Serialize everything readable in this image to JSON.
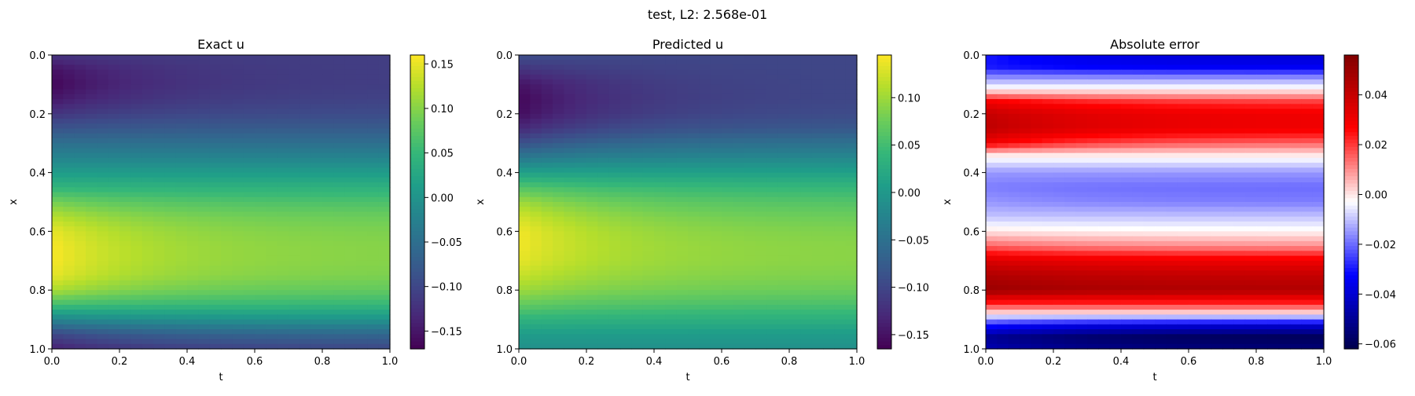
{
  "figure": {
    "suptitle": "test, L2: 2.568e-01"
  },
  "chart_data": [
    {
      "type": "heatmap",
      "title": "Exact u",
      "xlabel": "t",
      "ylabel": "x",
      "xlim": [
        0.0,
        1.0
      ],
      "ylim": [
        1.0,
        0.0
      ],
      "xticks": [
        "0.0",
        "0.2",
        "0.4",
        "0.6",
        "0.8",
        "1.0"
      ],
      "yticks": [
        "0.0",
        "0.2",
        "0.4",
        "0.6",
        "0.8",
        "1.0"
      ],
      "colormap": "viridis",
      "clim": [
        -0.17,
        0.16
      ],
      "colorbar_ticks": [
        "0.15",
        "0.10",
        "0.05",
        "0.00",
        "−0.05",
        "−0.10",
        "−0.15"
      ],
      "colorbar_tick_values": [
        0.15,
        0.1,
        0.05,
        0.0,
        -0.05,
        -0.1,
        -0.15
      ],
      "profile": {
        "x": [
          0.0,
          0.05,
          0.1,
          0.15,
          0.2,
          0.25,
          0.3,
          0.35,
          0.4,
          0.45,
          0.5,
          0.55,
          0.6,
          0.65,
          0.7,
          0.75,
          0.8,
          0.85,
          0.9,
          0.95,
          1.0
        ],
        "u_t0": [
          -0.12,
          -0.155,
          -0.165,
          -0.15,
          -0.12,
          -0.085,
          -0.05,
          -0.02,
          0.01,
          0.045,
          0.09,
          0.125,
          0.15,
          0.158,
          0.158,
          0.15,
          0.12,
          0.06,
          -0.02,
          -0.1,
          -0.14
        ],
        "u_t1": [
          -0.11,
          -0.11,
          -0.11,
          -0.105,
          -0.095,
          -0.075,
          -0.05,
          -0.02,
          0.01,
          0.04,
          0.065,
          0.085,
          0.095,
          0.1,
          0.1,
          0.095,
          0.08,
          0.05,
          0.0,
          -0.06,
          -0.1
        ]
      }
    },
    {
      "type": "heatmap",
      "title": "Predicted u",
      "xlabel": "t",
      "ylabel": "x",
      "xlim": [
        0.0,
        1.0
      ],
      "ylim": [
        1.0,
        0.0
      ],
      "xticks": [
        "0.0",
        "0.2",
        "0.4",
        "0.6",
        "0.8",
        "1.0"
      ],
      "yticks": [
        "0.0",
        "0.2",
        "0.4",
        "0.6",
        "0.8",
        "1.0"
      ],
      "colormap": "viridis",
      "clim": [
        -0.165,
        0.145
      ],
      "colorbar_ticks": [
        "0.10",
        "0.05",
        "0.00",
        "−0.05",
        "−0.10",
        "−0.15"
      ],
      "colorbar_tick_values": [
        0.1,
        0.05,
        0.0,
        -0.05,
        -0.1,
        -0.15
      ],
      "profile": {
        "x": [
          0.0,
          0.05,
          0.1,
          0.15,
          0.2,
          0.25,
          0.3,
          0.35,
          0.4,
          0.45,
          0.5,
          0.55,
          0.6,
          0.65,
          0.7,
          0.75,
          0.8,
          0.85,
          0.9,
          0.95,
          1.0
        ],
        "u_t0": [
          -0.09,
          -0.12,
          -0.15,
          -0.16,
          -0.155,
          -0.13,
          -0.09,
          -0.04,
          0.01,
          0.06,
          0.1,
          0.125,
          0.14,
          0.14,
          0.135,
          0.12,
          0.1,
          0.07,
          0.035,
          0.005,
          -0.01
        ],
        "u_t1": [
          -0.1,
          -0.1,
          -0.1,
          -0.1,
          -0.095,
          -0.08,
          -0.05,
          -0.02,
          0.01,
          0.04,
          0.06,
          0.075,
          0.085,
          0.09,
          0.09,
          0.085,
          0.075,
          0.055,
          0.03,
          0.005,
          -0.01
        ]
      }
    },
    {
      "type": "heatmap",
      "title": "Absolute error",
      "xlabel": "t",
      "ylabel": "x",
      "xlim": [
        0.0,
        1.0
      ],
      "ylim": [
        1.0,
        0.0
      ],
      "xticks": [
        "0.0",
        "0.2",
        "0.4",
        "0.6",
        "0.8",
        "1.0"
      ],
      "yticks": [
        "0.0",
        "0.2",
        "0.4",
        "0.6",
        "0.8",
        "1.0"
      ],
      "colormap": "seismic",
      "clim": [
        -0.062,
        0.056
      ],
      "colorbar_ticks": [
        "0.04",
        "0.02",
        "0.00",
        "−0.02",
        "−0.04",
        "−0.06"
      ],
      "colorbar_tick_values": [
        0.04,
        0.02,
        0.0,
        -0.02,
        -0.04,
        -0.06
      ],
      "profile": {
        "x": [
          0.0,
          0.04,
          0.08,
          0.12,
          0.16,
          0.2,
          0.25,
          0.3,
          0.34,
          0.4,
          0.45,
          0.5,
          0.55,
          0.6,
          0.65,
          0.7,
          0.75,
          0.8,
          0.85,
          0.88,
          0.92,
          0.96,
          1.0
        ],
        "err_t0": [
          -0.03,
          -0.03,
          -0.015,
          0.0,
          0.03,
          0.04,
          0.042,
          0.03,
          0.0,
          -0.015,
          -0.018,
          -0.015,
          -0.01,
          0.0,
          0.015,
          0.035,
          0.045,
          0.05,
          0.02,
          0.0,
          -0.03,
          -0.05,
          -0.045
        ],
        "err_t1": [
          -0.04,
          -0.035,
          -0.015,
          0.0,
          0.02,
          0.03,
          0.03,
          0.015,
          0.0,
          -0.015,
          -0.02,
          -0.018,
          -0.01,
          -0.002,
          0.01,
          0.03,
          0.04,
          0.045,
          0.02,
          0.0,
          -0.04,
          -0.06,
          -0.055
        ]
      }
    }
  ]
}
